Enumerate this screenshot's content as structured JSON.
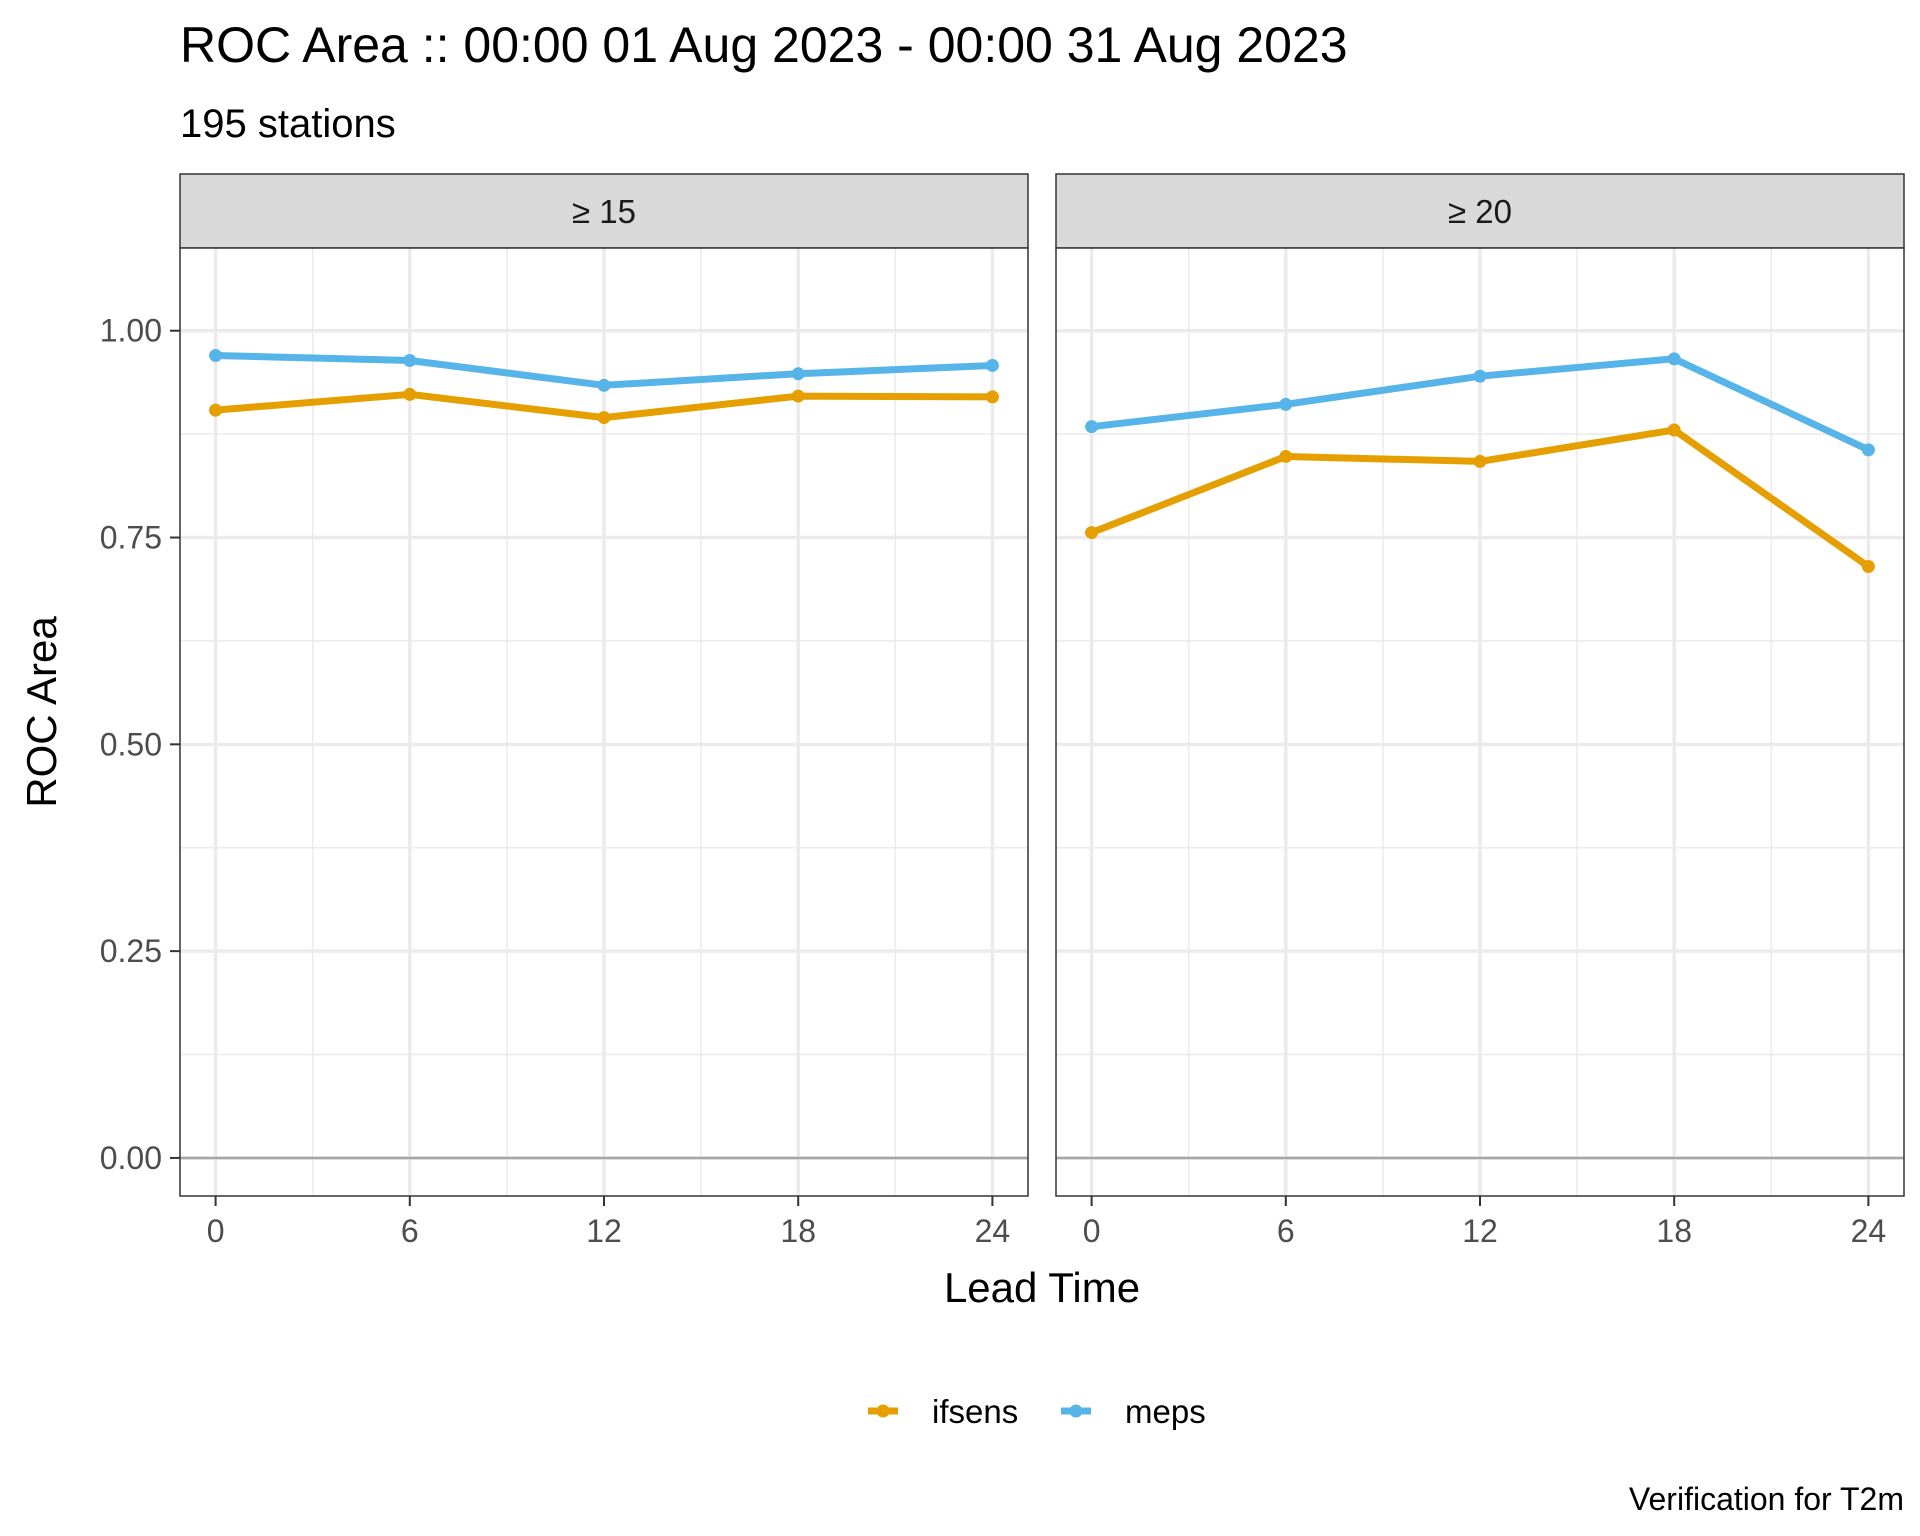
{
  "chart_data": {
    "type": "line",
    "title": "ROC Area :: 00:00 01 Aug 2023 - 00:00 31 Aug 2023",
    "subtitle": "195 stations",
    "xlabel": "Lead Time",
    "ylabel": "ROC Area",
    "caption": "Verification for T2m",
    "x": [
      0,
      6,
      12,
      18,
      24
    ],
    "x_ticks": [
      "0",
      "6",
      "12",
      "18",
      "24"
    ],
    "xlim": [
      -1.1,
      25.1
    ],
    "y_ticks": [
      "0.00",
      "0.25",
      "0.50",
      "0.75",
      "1.00"
    ],
    "ylim": [
      -0.046,
      1.1
    ],
    "grid": true,
    "legend_position": "bottom",
    "legend": [
      {
        "name": "ifsens",
        "color": "#E69F00"
      },
      {
        "name": "meps",
        "color": "#56B4E9"
      }
    ],
    "panels": [
      {
        "label": "≥ 15",
        "series": [
          {
            "name": "ifsens",
            "color": "#E69F00",
            "values": [
              0.904,
              0.923,
              0.895,
              0.921,
              0.92
            ]
          },
          {
            "name": "meps",
            "color": "#56B4E9",
            "values": [
              0.97,
              0.964,
              0.934,
              0.948,
              0.958
            ]
          }
        ]
      },
      {
        "label": "≥ 20",
        "series": [
          {
            "name": "ifsens",
            "color": "#E69F00",
            "values": [
              0.756,
              0.848,
              0.842,
              0.88,
              0.715
            ]
          },
          {
            "name": "meps",
            "color": "#56B4E9",
            "values": [
              0.884,
              0.911,
              0.945,
              0.966,
              0.856
            ]
          }
        ]
      }
    ]
  }
}
